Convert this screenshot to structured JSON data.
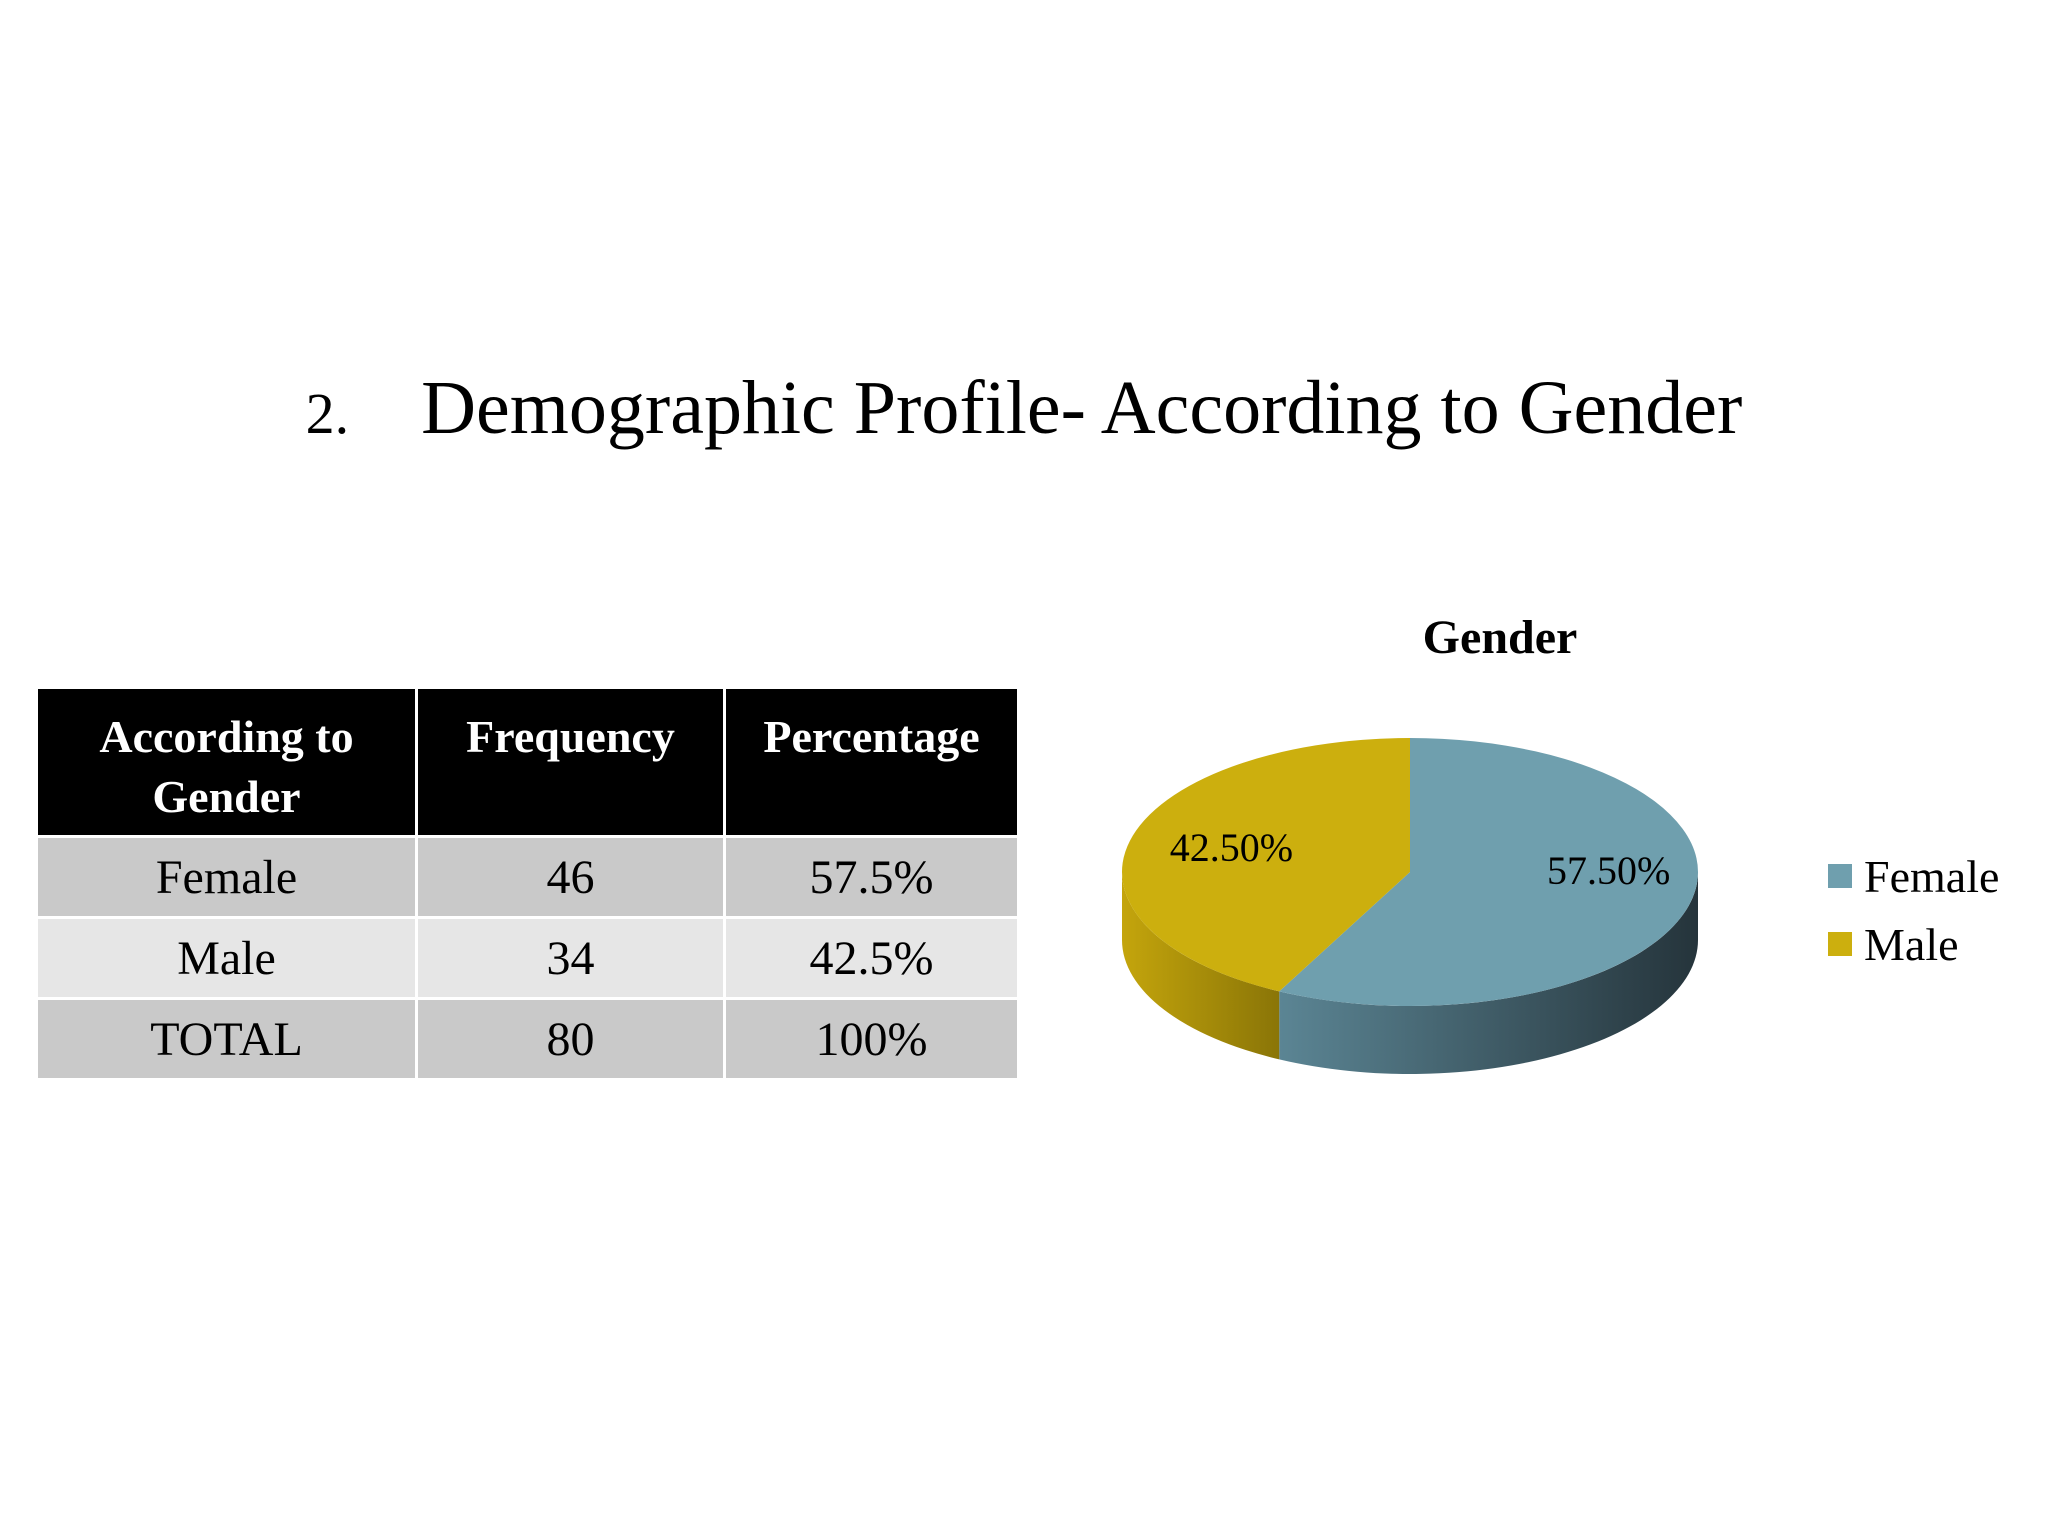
{
  "title": {
    "number": "2.",
    "text": "Demographic Profile- According to Gender"
  },
  "table": {
    "headers": [
      "According to Gender",
      "Frequency",
      "Percentage"
    ],
    "rows": [
      {
        "label": "Female",
        "frequency": "46",
        "percentage": "57.5%"
      },
      {
        "label": "Male",
        "frequency": "34",
        "percentage": "42.5%"
      },
      {
        "label": "TOTAL",
        "frequency": "80",
        "percentage": "100%"
      }
    ]
  },
  "chart_data": {
    "type": "pie",
    "title": "Gender",
    "legend_position": "right",
    "slices": [
      {
        "name": "Female",
        "value": 57.5,
        "label": "57.50%",
        "color": "#6f9fae",
        "side_color": "#3d5a66"
      },
      {
        "name": "Male",
        "value": 42.5,
        "label": "42.50%",
        "color": "#ccaf0e",
        "side_color": "#9a8308"
      }
    ]
  }
}
